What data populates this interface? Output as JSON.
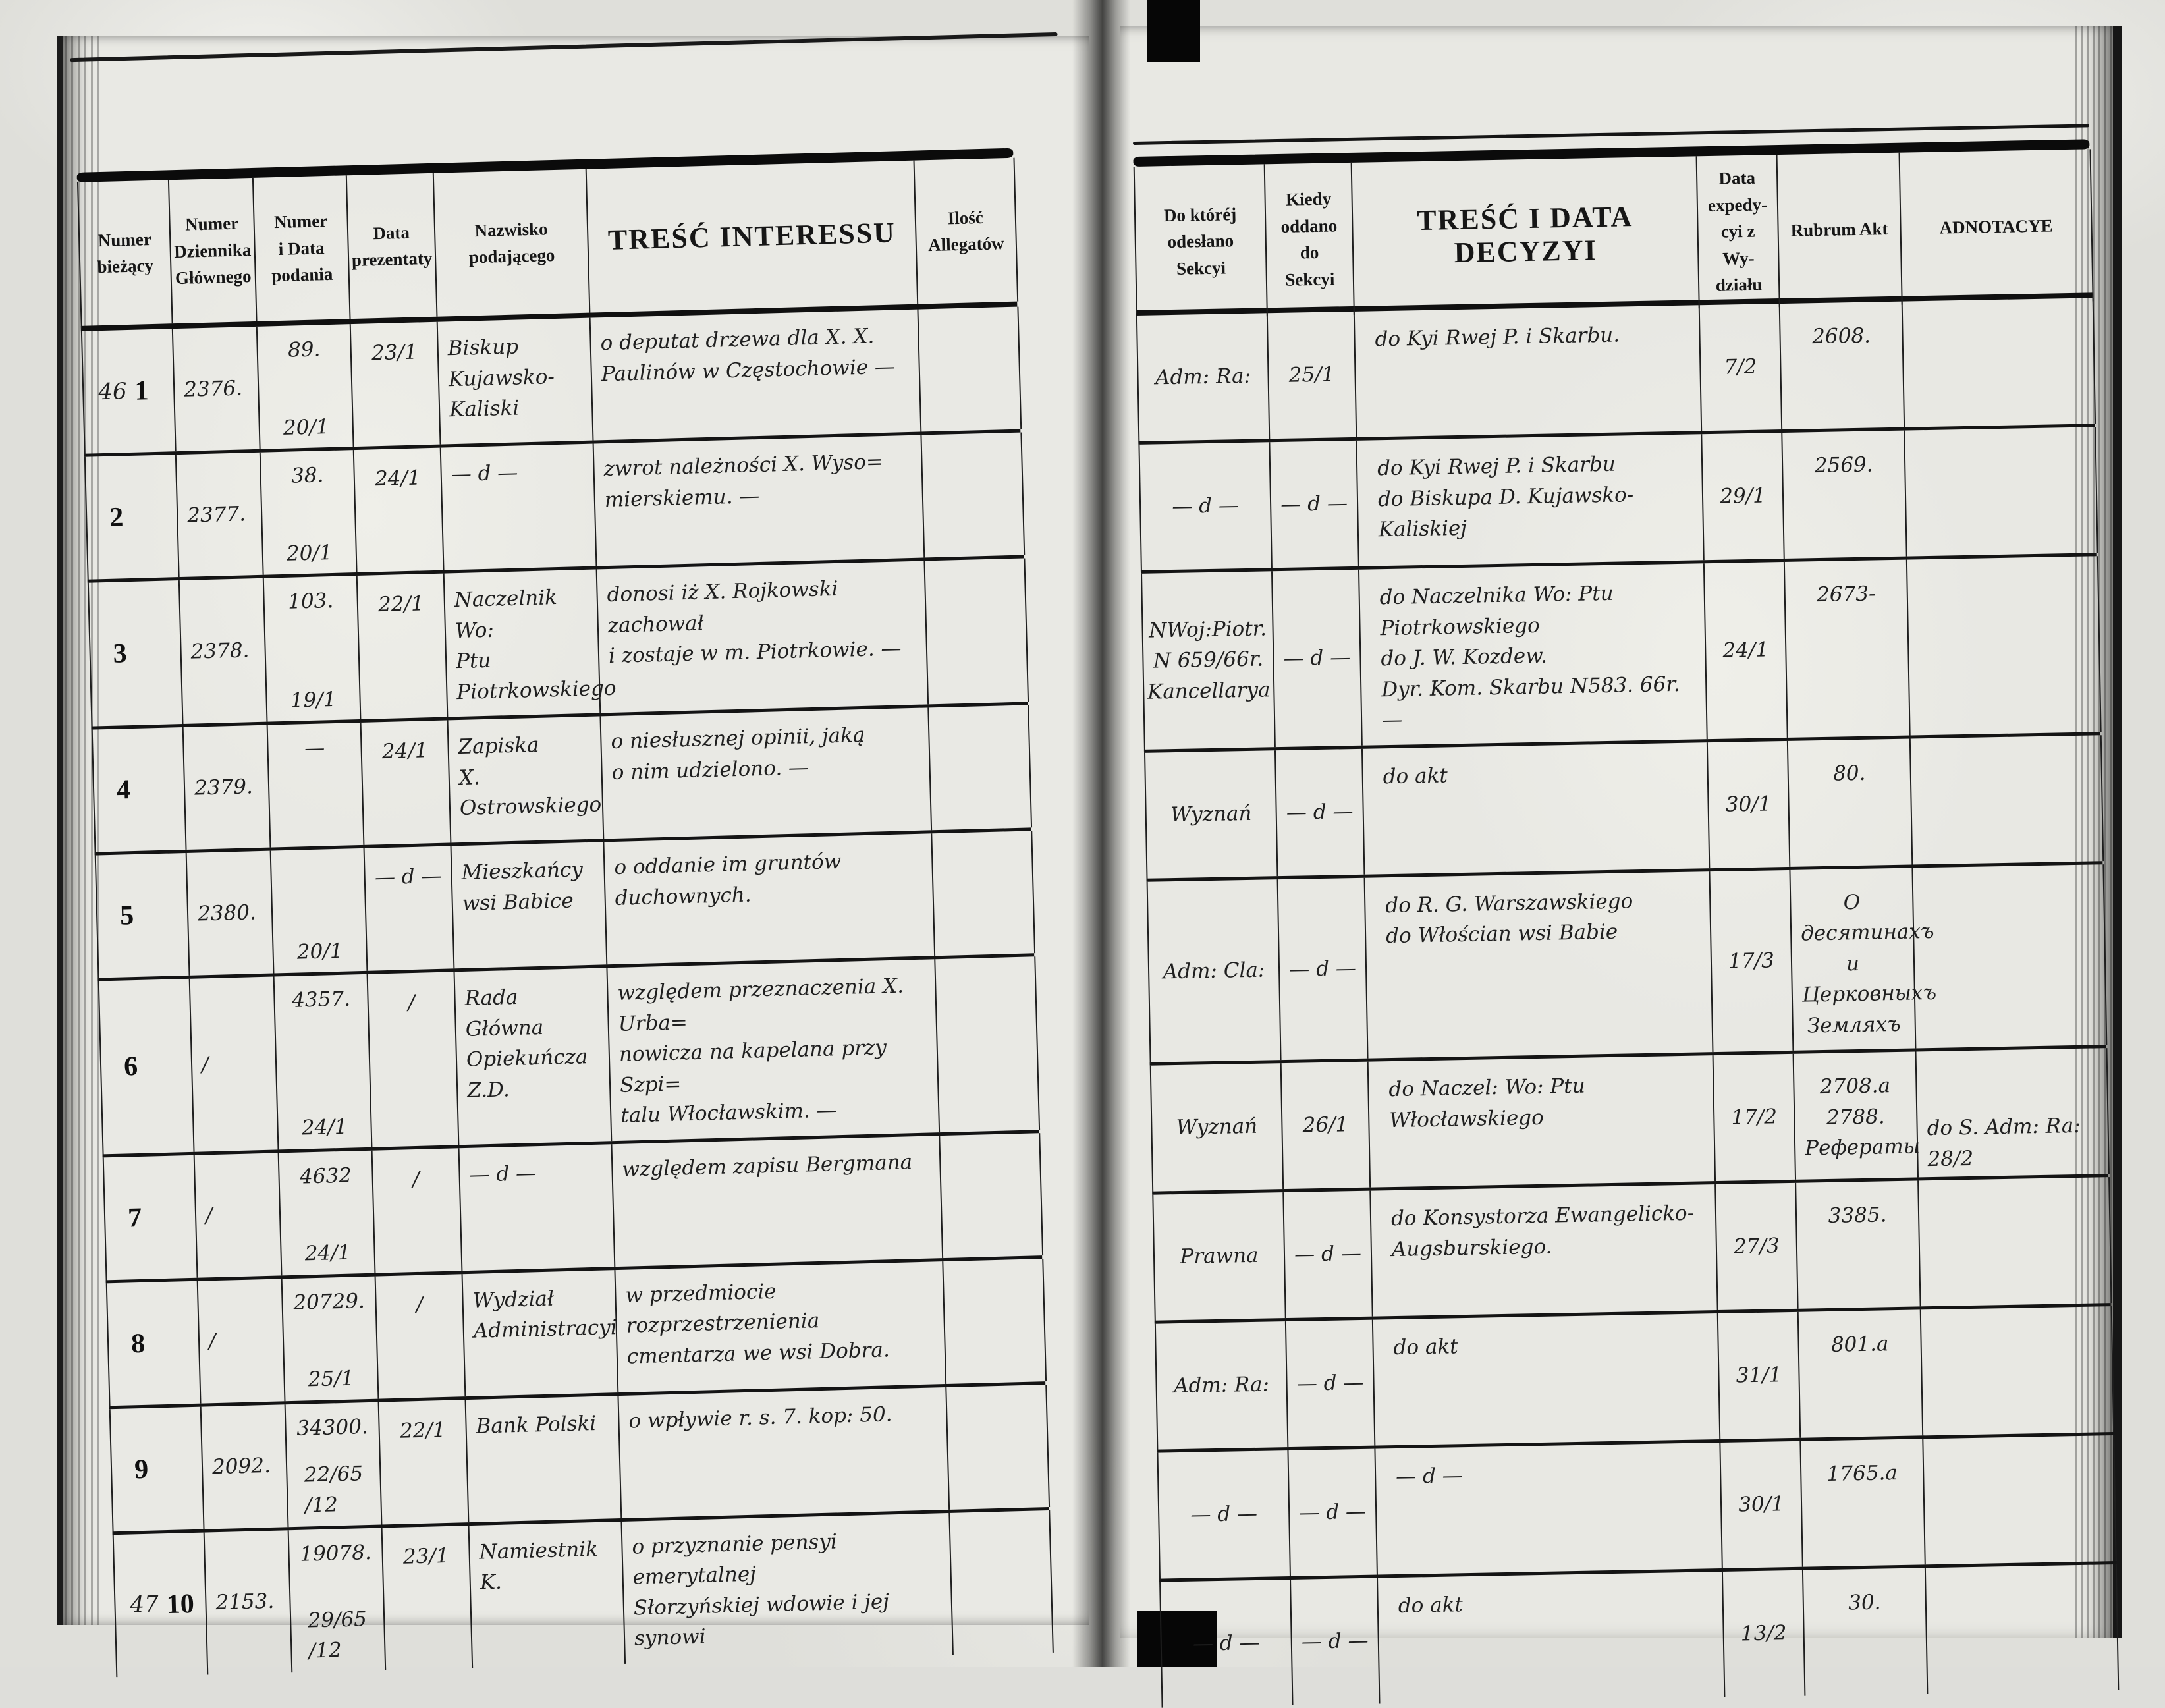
{
  "page": {
    "corner_number": "47"
  },
  "left_page": {
    "headers": {
      "numer_biezacy": "Numer\nbieżący",
      "numer_dziennika": "Numer\nDziennika\nGłównego",
      "numer_i_data_podania": "Numer\ni Data\npodania",
      "data_prezentaty": "Data\nprezentaty",
      "nazwisko_podajacego": "Nazwisko\npodającego",
      "tresc_interessu": "TREŚĆ INTERESSU",
      "ilosc_allegatow": "Ilość\nAllegatów"
    }
  },
  "right_page": {
    "headers": {
      "do_ktorej_odeslano_sekcyi": "Do któréj\nodesłano Sekcyi",
      "kiedy_oddano_do_sekcyi": "Kiedy\noddano\ndo Sekcyi",
      "tresc_i_data_decyzyi": "TREŚĆ I DATA DECYZYI",
      "data_expedycyi": "Data\nexpedy-\ncyi z Wy-\ndziału",
      "rubrum_akt": "Rubrum Akt",
      "adnotacye": "ADNOTACYE"
    }
  },
  "rows": [
    {
      "marg": "46",
      "no": "1",
      "dz": "2376.",
      "num": "89.",
      "num2": "20/1",
      "prez": "23/1",
      "nazw": "Biskup\nKujawsko-\nKaliski",
      "tresc": "o deputat drzewa dla X. X.\nPaulinów w Częstochowie —",
      "alleg": "",
      "sek": "Adm: Ra:",
      "kiedy": "25/1",
      "dec": "do Kyi Rwej P. i Skarbu.",
      "exp": "7/2",
      "rub": "2608.",
      "adn": ""
    },
    {
      "marg": "",
      "no": "2",
      "dz": "2377.",
      "num": "38.",
      "num2": "20/1",
      "prez": "24/1",
      "nazw": "— d —",
      "tresc": "zwrot należności X. Wyso=\nmierskiemu. —",
      "alleg": "",
      "sek": "— d —",
      "kiedy": "— d —",
      "dec": "do Kyi Rwej P. i Skarbu\ndo Biskupa D. Kujawsko-Kaliskiej",
      "exp": "29/1",
      "rub": "2569.",
      "adn": ""
    },
    {
      "marg": "",
      "no": "3",
      "dz": "2378.",
      "num": "103.",
      "num2": "19/1",
      "prez": "22/1",
      "nazw": "Naczelnik Wo:\nPtu Piotrkowskiego",
      "tresc": "donosi iż X. Rojkowski zachował\ni zostaje w m. Piotrkowie. —",
      "alleg": "",
      "sek": "NWoj:Piotr. N 659/66r.\nKancellarya",
      "kiedy": "— d —",
      "dec": "do Naczelnika Wo: Ptu Piotrkowskiego\ndo J. W. Kozdew.\nDyr. Kom. Skarbu N583. 66r. —",
      "exp": "24/1",
      "rub": "2673-",
      "adn": ""
    },
    {
      "marg": "",
      "no": "4",
      "dz": "2379.",
      "num": "—",
      "num2": "",
      "prez": "24/1",
      "nazw": "Zapiska\nX. Ostrowskiego",
      "tresc": "o niesłusznej opinii, jaką\no nim udzielono. —",
      "alleg": "",
      "sek": "Wyznań",
      "kiedy": "— d —",
      "dec": "do akt",
      "exp": "30/1",
      "rub": "80.",
      "adn": ""
    },
    {
      "marg": "",
      "no": "5",
      "dz": "2380.",
      "num": "",
      "num2": "20/1",
      "prez": "— d —",
      "nazw": "Mieszkańcy\nwsi Babice",
      "tresc": "o oddanie im gruntów duchownych.",
      "alleg": "",
      "sek": "Adm: Cla:",
      "kiedy": "— d —",
      "dec": "do R. G. Warszawskiego\ndo Włościan wsi Babie",
      "exp": "17/3",
      "rub": "О десятинахъ\nи Церковныхъ\nЗемляхъ",
      "adn": ""
    },
    {
      "marg": "",
      "no": "6",
      "dz": "/",
      "num": "4357.",
      "num2": "24/1",
      "prez": "/",
      "nazw": "Rada Główna\nOpiekuńcza Z.D.",
      "tresc": "względem przeznaczenia X. Urba=\nnowicza na kapelana przy Szpi=\ntalu Włocławskim. —",
      "alleg": "",
      "sek": "Wyznań",
      "kiedy": "26/1",
      "dec": "do Naczel: Wo: Ptu Włocławskiego",
      "exp": "17/2",
      "rub": "2708.a\n2788. Рефераты",
      "adn": "do S. Adm: Ra: 28/2"
    },
    {
      "marg": "",
      "no": "7",
      "dz": "/",
      "num": "4632",
      "num2": "24/1",
      "prez": "/",
      "nazw": "— d —",
      "tresc": "względem zapisu Bergmana",
      "alleg": "",
      "sek": "Prawna",
      "kiedy": "— d —",
      "dec": "do Konsystorza Ewangelicko-\nAugsburskiego.",
      "exp": "27/3",
      "rub": "3385.",
      "adn": ""
    },
    {
      "marg": "",
      "no": "8",
      "dz": "/",
      "num": "20729.",
      "num2": "25/1",
      "prez": "/",
      "nazw": "Wydział\nAdministracyi",
      "tresc": "w przedmiocie rozprzestrzenienia\ncmentarza we wsi Dobra.",
      "alleg": "",
      "sek": "Adm: Ra:",
      "kiedy": "— d —",
      "dec": "do akt",
      "exp": "31/1",
      "rub": "801.a",
      "adn": ""
    },
    {
      "marg": "",
      "no": "9",
      "dz": "2092.",
      "num": "34300.",
      "num2": "22/65\n/12",
      "prez": "22/1",
      "nazw": "Bank Polski",
      "tresc": "o wpływie r. s. 7. kop: 50.",
      "alleg": "",
      "sek": "— d —",
      "kiedy": "— d —",
      "dec": "— d —",
      "exp": "30/1",
      "rub": "1765.a",
      "adn": ""
    },
    {
      "marg": "47",
      "no": "10",
      "dz": "2153.",
      "num": "19078.",
      "num2": "29/65\n/12",
      "prez": "23/1",
      "nazw": "Namiestnik K.",
      "tresc": "o przyznanie pensyi emerytalnej\nSłorzyńskiej wdowie i jej synowi",
      "alleg": "",
      "sek": "— d —",
      "kiedy": "— d —",
      "dec": "do akt",
      "exp": "13/2",
      "rub": "30.",
      "adn": ""
    }
  ]
}
